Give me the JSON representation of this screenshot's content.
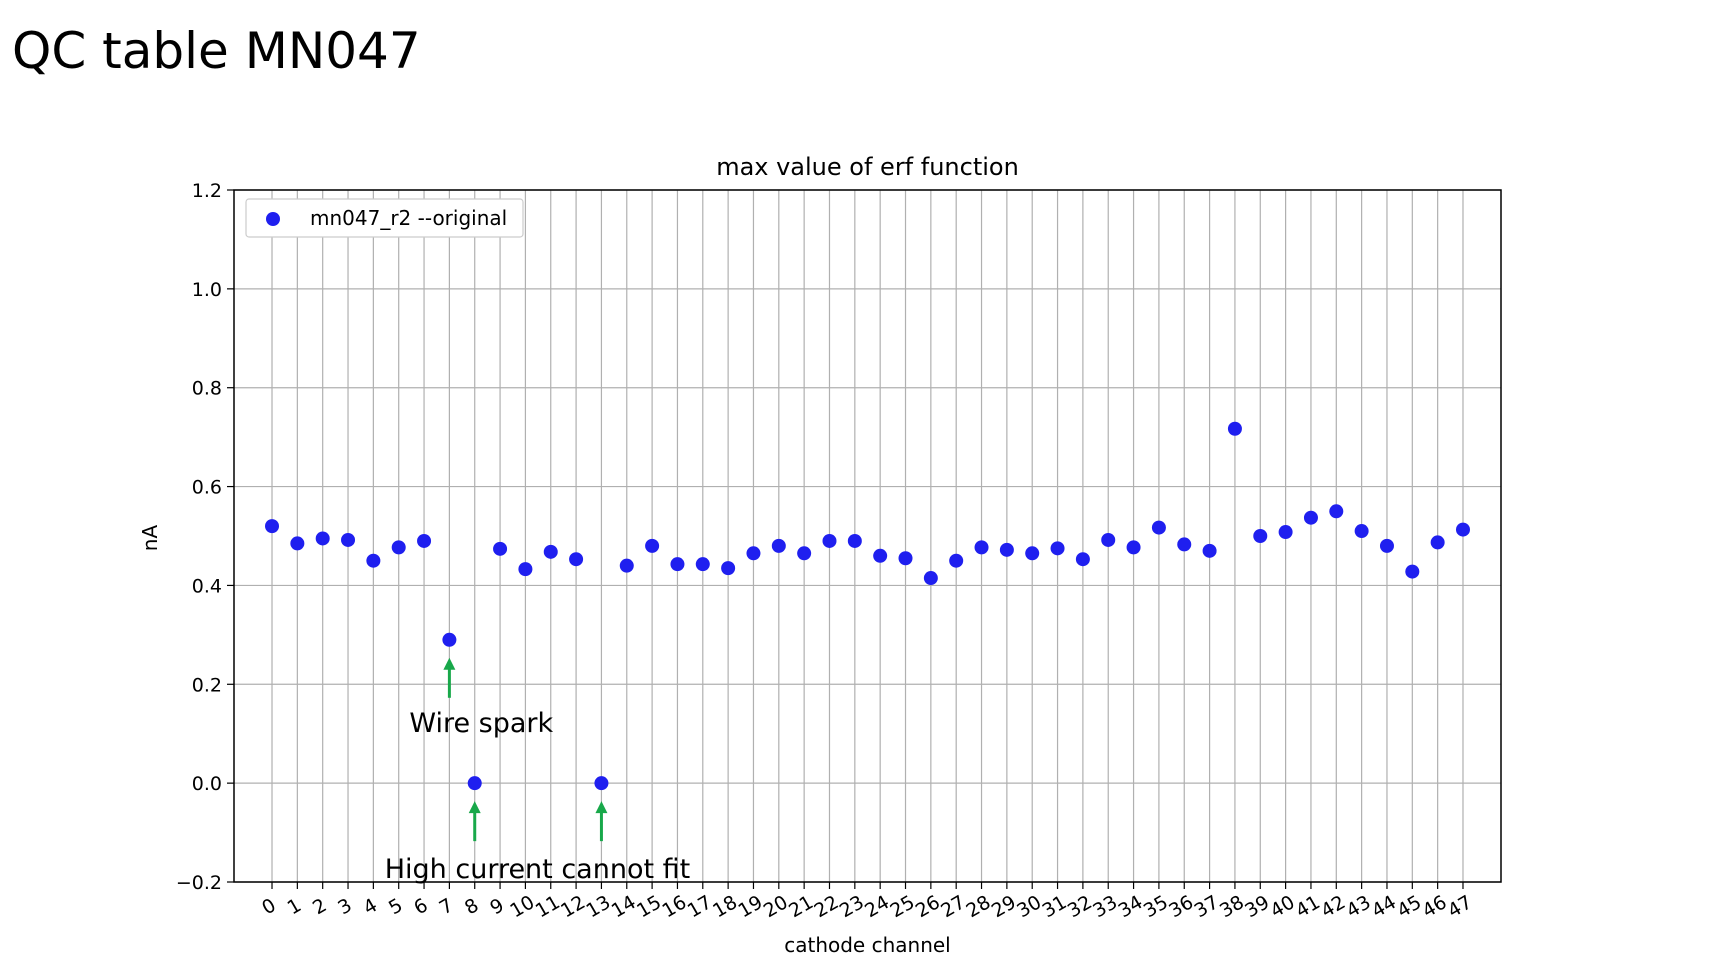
{
  "slide": {
    "title": "QC table MN047"
  },
  "chart_data": {
    "type": "scatter",
    "title": "max value of erf function",
    "xlabel": "cathode channel",
    "ylabel": "nA",
    "ylim": [
      -0.2,
      1.2
    ],
    "yticks": [
      "−0.2",
      "0.0",
      "0.2",
      "0.4",
      "0.6",
      "0.8",
      "1.0",
      "1.2"
    ],
    "ytick_values": [
      -0.2,
      0.0,
      0.2,
      0.4,
      0.6,
      0.8,
      1.0,
      1.2
    ],
    "xlim": [
      -1.5,
      48.5
    ],
    "grid": true,
    "legend_position": "top-left",
    "color": "#1f1fef",
    "annotation_color": "#18a84a",
    "series": [
      {
        "name": "mn047_r2 --original",
        "x": [
          0,
          1,
          2,
          3,
          4,
          5,
          6,
          7,
          8,
          9,
          10,
          11,
          12,
          13,
          14,
          15,
          16,
          17,
          18,
          19,
          20,
          21,
          22,
          23,
          24,
          25,
          26,
          27,
          28,
          29,
          30,
          31,
          32,
          33,
          34,
          35,
          36,
          37,
          38,
          39,
          40,
          41,
          42,
          43,
          44,
          45,
          46,
          47
        ],
        "values": [
          0.52,
          0.485,
          0.495,
          0.492,
          0.45,
          0.477,
          0.49,
          0.29,
          0.0,
          0.474,
          0.433,
          0.468,
          0.453,
          0.0,
          0.44,
          0.48,
          0.443,
          0.443,
          0.435,
          0.465,
          0.48,
          0.465,
          0.49,
          0.49,
          0.46,
          0.455,
          0.415,
          0.45,
          0.477,
          0.472,
          0.465,
          0.475,
          0.453,
          0.492,
          0.477,
          0.517,
          0.483,
          0.47,
          0.717,
          0.5,
          0.508,
          0.537,
          0.55,
          0.51,
          0.48,
          0.428,
          0.487,
          0.513
        ]
      }
    ],
    "annotations": [
      {
        "text": "Wire spark",
        "x": 7,
        "y": 0.29
      },
      {
        "text": "High current cannot fit",
        "x": [
          8,
          13
        ],
        "y": 0.0
      }
    ]
  }
}
